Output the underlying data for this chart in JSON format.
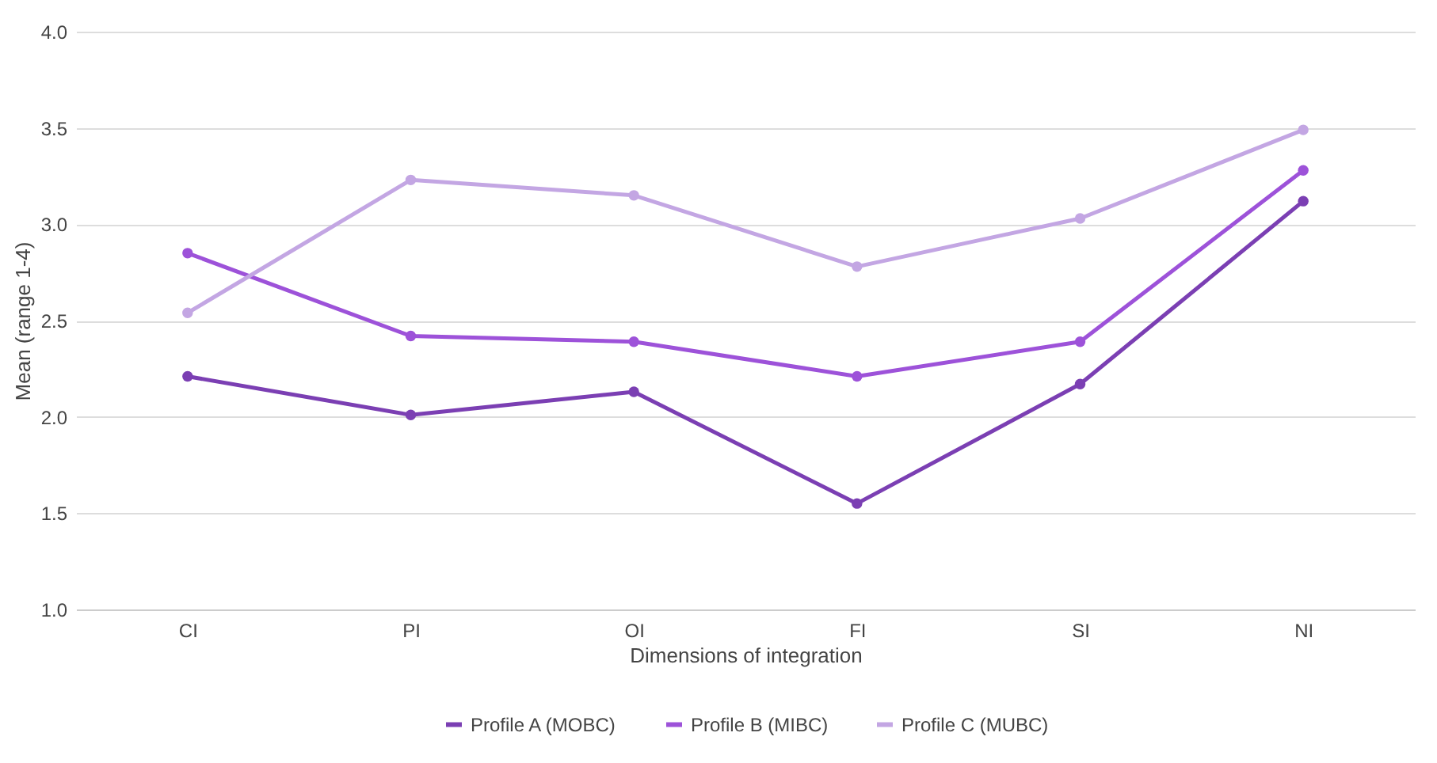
{
  "chart_data": {
    "type": "line",
    "xlabel": "Dimensions of integration",
    "ylabel": "Mean (range 1-4)",
    "categories": [
      "CI",
      "PI",
      "OI",
      "FI",
      "SI",
      "NI"
    ],
    "ylim": [
      1,
      4
    ],
    "yticks": [
      {
        "value": 1,
        "label": "1.0"
      },
      {
        "value": 1.5,
        "label": "1.5"
      },
      {
        "value": 2,
        "label": "2.0"
      },
      {
        "value": 2.5,
        "label": "2.5"
      },
      {
        "value": 3,
        "label": "3.0"
      },
      {
        "value": 3.5,
        "label": "3.5"
      },
      {
        "value": 4,
        "label": "4.0"
      }
    ],
    "grid": "y",
    "legend": "bottom",
    "marker": "circle",
    "line_style": "solid",
    "series": [
      {
        "name": "Profile A (MOBC)",
        "color": "#7b3fb3",
        "values": [
          2.21,
          2.01,
          2.13,
          1.55,
          2.17,
          3.12
        ]
      },
      {
        "name": "Profile B (MIBC)",
        "color": "#9d52d9",
        "values": [
          2.85,
          2.42,
          2.39,
          2.21,
          2.39,
          3.28
        ]
      },
      {
        "name": "Profile C (MUBC)",
        "color": "#c3a6e3",
        "values": [
          2.54,
          3.23,
          3.15,
          2.78,
          3.03,
          3.49
        ]
      }
    ]
  }
}
